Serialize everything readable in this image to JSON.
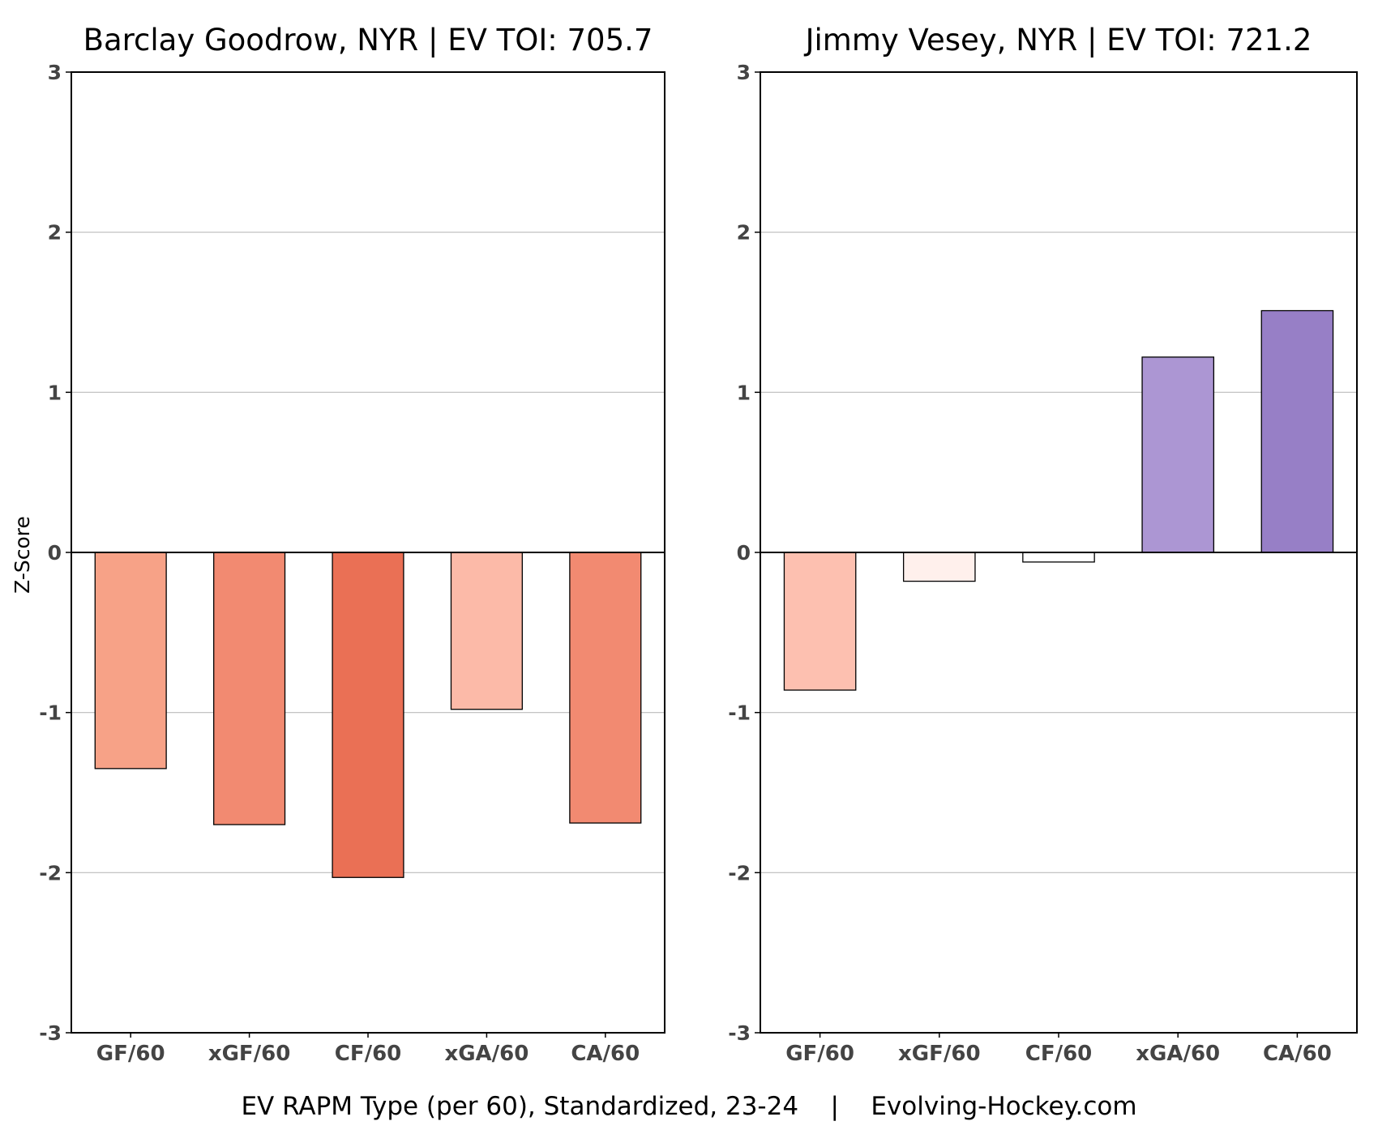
{
  "caption": "EV RAPM Type (per 60), Standardized, 23-24    |    Evolving-Hockey.com",
  "y_axis_title": "Z-Score",
  "chart_data": [
    {
      "type": "bar",
      "title": "Barclay Goodrow, NYR  |  EV TOI: 705.7",
      "categories": [
        "GF/60",
        "xGF/60",
        "CF/60",
        "xGA/60",
        "CA/60"
      ],
      "values": [
        -1.35,
        -1.7,
        -2.03,
        -0.98,
        -1.69
      ],
      "colors": [
        "#f7a287",
        "#f28a71",
        "#ea7055",
        "#fcbaa8",
        "#f28a71"
      ],
      "ylabel": "Z-Score",
      "ylim": [
        -3,
        3
      ],
      "yticks": [
        3,
        2,
        1,
        0,
        -1,
        -2,
        -3
      ],
      "ytick_labels": [
        "3",
        "2",
        "1",
        "0",
        "-1",
        "-2",
        "-3"
      ],
      "grid": true
    },
    {
      "type": "bar",
      "title": "Jimmy Vesey, NYR  |  EV TOI: 721.2",
      "categories": [
        "GF/60",
        "xGF/60",
        "CF/60",
        "xGA/60",
        "CA/60"
      ],
      "values": [
        -0.86,
        -0.18,
        -0.06,
        1.22,
        1.51
      ],
      "colors": [
        "#fdc0b0",
        "#fff0ec",
        "#ffffff",
        "#ac96d3",
        "#977fc6"
      ],
      "ylabel": "",
      "ylim": [
        -3,
        3
      ],
      "yticks": [
        3,
        2,
        1,
        0,
        -1,
        -2,
        -3
      ],
      "ytick_labels": [
        "3",
        "2",
        "1",
        "0",
        "-1",
        "-2",
        "-3"
      ],
      "grid": true
    }
  ]
}
